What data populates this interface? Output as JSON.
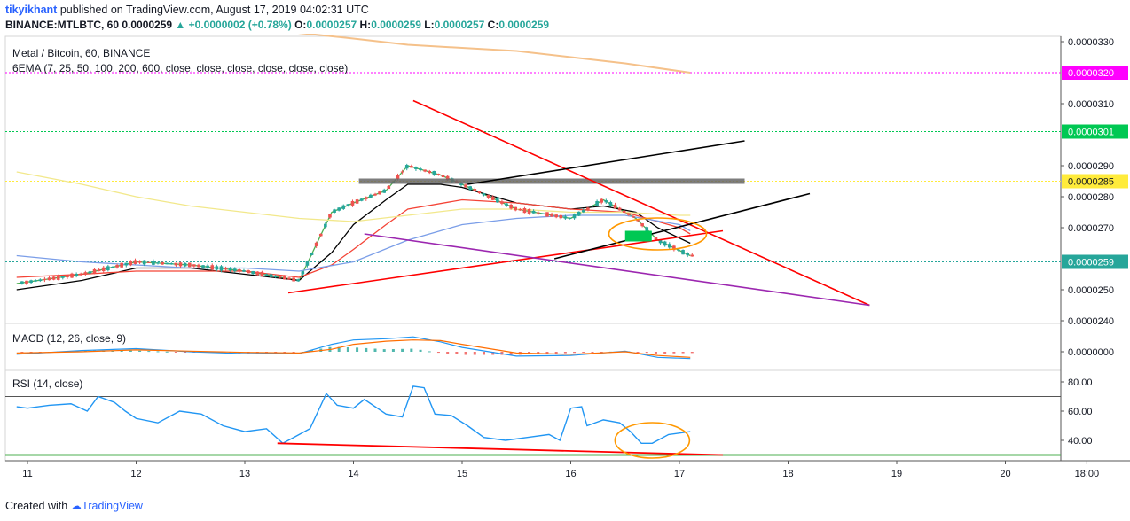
{
  "header": {
    "author": "tikyikhant",
    "published_text": "published on TradingView.com, August 17, 2019 04:02:31 UTC",
    "symbol_full": "BINANCE:MTLBTC, 60",
    "last_price": "0.0000259",
    "change": "+0.0000002 (+0.78%)",
    "ohlc": {
      "o_label": "O:",
      "o": "0.0000257",
      "h_label": "H:",
      "h": "0.0000259",
      "l_label": "L:",
      "l": "0.0000257",
      "c_label": "C:",
      "c": "0.0000259"
    }
  },
  "legend": {
    "pane_title": "Metal / Bitcoin, 60, BINANCE",
    "ema_label": "6EMA (7, 25, 50, 100, 200, 600, close, close, close, close, close, close)",
    "macd_label": "MACD (12, 26, close, 9)",
    "rsi_label": "RSI (14, close)"
  },
  "footer": {
    "created_with": "Created with",
    "brand": "TradingView"
  },
  "colors": {
    "up": "#26a69a",
    "down": "#ef5350",
    "trend_red": "#ff0000",
    "purple": "#9c27b0",
    "black_line": "#000000",
    "orange": "#ff9800",
    "magenta": "#ff00ff",
    "green": "#00c853",
    "yellow": "#ffeb3b",
    "rsi": "#2196f3"
  },
  "chart_data": [
    {
      "type": "candlestick",
      "title": "Metal / Bitcoin, 60, BINANCE",
      "ylim": [
        2.4e-05,
        3.33e-05
      ],
      "y_ticks": [
        "0.0000330",
        "0.0000310",
        "0.0000290",
        "0.0000280",
        "0.0000270",
        "0.0000250",
        "0.0000240"
      ],
      "x_ticks": [
        "11",
        "12",
        "13",
        "14",
        "15",
        "16",
        "17",
        "18",
        "19",
        "20",
        "18:00"
      ],
      "xlim": [
        10.9,
        21.25
      ],
      "price_labels": [
        {
          "value": 3.2e-05,
          "text": "0.0000320",
          "color": "#ff00ff"
        },
        {
          "value": 3.01e-05,
          "text": "0.0000301",
          "color": "#00c853"
        },
        {
          "value": 2.85e-05,
          "text": "0.0000285",
          "color": "#ffeb3b"
        },
        {
          "value": 2.59e-05,
          "text": "0.0000259",
          "color": "#26a69a"
        }
      ],
      "trendlines": [
        {
          "name": "descending-resistance",
          "color": "#ff0000",
          "points": [
            [
              14.55,
              3.11e-05
            ],
            [
              18.75,
              2.45e-05
            ]
          ]
        },
        {
          "name": "ascending-support",
          "color": "#ff0000",
          "points": [
            [
              13.4,
              2.49e-05
            ],
            [
              17.4,
              2.69e-05
            ]
          ]
        },
        {
          "name": "lower-wedge",
          "color": "#9c27b0",
          "points": [
            [
              14.1,
              2.68e-05
            ],
            [
              18.75,
              2.45e-05
            ]
          ]
        },
        {
          "name": "channel-upper",
          "color": "#000000",
          "points": [
            [
              15.05,
              2.84e-05
            ],
            [
              17.6,
              2.98e-05
            ]
          ]
        },
        {
          "name": "channel-lower",
          "color": "#000000",
          "points": [
            [
              15.85,
              2.6e-05
            ],
            [
              18.2,
              2.81e-05
            ]
          ]
        }
      ],
      "resistance_zone": {
        "from_x": 14.05,
        "to_x": 17.6,
        "y": 2.85e-05
      },
      "ema_series": [
        {
          "name": "ema-7",
          "color": "#4caf50",
          "x": [
            10.9,
            11.5,
            12,
            12.5,
            13,
            13.5,
            13.8,
            14,
            14.3,
            14.5,
            14.8,
            15,
            15.5,
            16,
            16.3,
            16.6,
            16.8,
            17.1
          ],
          "y": [
            2.52e-05,
            2.55e-05,
            2.59e-05,
            2.58e-05,
            2.56e-05,
            2.53e-05,
            2.75e-05,
            2.78e-05,
            2.82e-05,
            2.9e-05,
            2.87e-05,
            2.84e-05,
            2.76e-05,
            2.73e-05,
            2.79e-05,
            2.73e-05,
            2.66e-05,
            2.61e-05
          ]
        },
        {
          "name": "ema-25",
          "color": "#000000",
          "x": [
            10.9,
            11.5,
            12,
            12.5,
            13,
            13.5,
            13.8,
            14,
            14.3,
            14.5,
            14.8,
            15,
            15.5,
            16,
            16.3,
            16.6,
            16.8,
            17.1
          ],
          "y": [
            2.5e-05,
            2.53e-05,
            2.57e-05,
            2.57e-05,
            2.55e-05,
            2.53e-05,
            2.62e-05,
            2.71e-05,
            2.79e-05,
            2.84e-05,
            2.84e-05,
            2.83e-05,
            2.78e-05,
            2.76e-05,
            2.77e-05,
            2.75e-05,
            2.7e-05,
            2.65e-05
          ]
        },
        {
          "name": "ema-50",
          "color": "#f44336",
          "x": [
            10.9,
            11.5,
            12,
            12.5,
            13,
            13.5,
            13.8,
            14,
            14.3,
            14.5,
            15,
            15.5,
            16,
            16.5,
            17,
            17.1
          ],
          "y": [
            2.54e-05,
            2.55e-05,
            2.56e-05,
            2.56e-05,
            2.56e-05,
            2.54e-05,
            2.58e-05,
            2.63e-05,
            2.71e-05,
            2.76e-05,
            2.79e-05,
            2.78e-05,
            2.76e-05,
            2.75e-05,
            2.7e-05,
            2.68e-05
          ]
        },
        {
          "name": "ema-100",
          "color": "#7b9ee8",
          "x": [
            10.9,
            11.5,
            12,
            12.5,
            13,
            13.5,
            14,
            14.5,
            15,
            15.5,
            16,
            16.5,
            17,
            17.1
          ],
          "y": [
            2.61e-05,
            2.59e-05,
            2.58e-05,
            2.57e-05,
            2.57e-05,
            2.56e-05,
            2.59e-05,
            2.66e-05,
            2.71e-05,
            2.73e-05,
            2.74e-05,
            2.74e-05,
            2.71e-05,
            2.69e-05
          ]
        },
        {
          "name": "ema-200",
          "color": "#f2e88b",
          "x": [
            10.9,
            11.5,
            12,
            12.5,
            13,
            13.5,
            14,
            14.5,
            15,
            15.5,
            16,
            16.5,
            17,
            17.1
          ],
          "y": [
            2.88e-05,
            2.84e-05,
            2.8e-05,
            2.77e-05,
            2.75e-05,
            2.73e-05,
            2.72e-05,
            2.74e-05,
            2.76e-05,
            2.76e-05,
            2.75e-05,
            2.75e-05,
            2.74e-05,
            2.74e-05
          ]
        },
        {
          "name": "ema-600",
          "color": "#f5c18a",
          "x": [
            13.45,
            14,
            14.5,
            15,
            15.5,
            16,
            16.5,
            17.1
          ],
          "y": [
            3.33e-05,
            3.31e-05,
            3.29e-05,
            3.28e-05,
            3.27e-05,
            3.25e-05,
            3.23e-05,
            3.2e-05
          ]
        }
      ]
    },
    {
      "type": "line",
      "title": "MACD (12, 26, close, 9)",
      "y_ticks": [
        "0.0000000"
      ],
      "series": [
        {
          "name": "MACD",
          "color": "#2196f3",
          "x": [
            10.9,
            11.5,
            12,
            12.5,
            13,
            13.5,
            13.8,
            14,
            14.3,
            14.55,
            14.8,
            15,
            15.5,
            16,
            16.5,
            16.8,
            17.1
          ],
          "y": [
            -0.2,
            0.1,
            0.25,
            0.0,
            -0.15,
            -0.15,
            0.6,
            0.95,
            1.05,
            1.2,
            0.8,
            0.35,
            -0.35,
            -0.3,
            0.05,
            -0.45,
            -0.55
          ]
        },
        {
          "name": "Signal",
          "color": "#ff6d00",
          "x": [
            10.9,
            11.5,
            12,
            12.5,
            13,
            13.5,
            13.8,
            14,
            14.3,
            14.55,
            14.8,
            15,
            15.5,
            16,
            16.5,
            16.8,
            17.1
          ],
          "y": [
            -0.1,
            0.0,
            0.15,
            0.05,
            -0.05,
            -0.1,
            0.2,
            0.6,
            0.85,
            0.95,
            0.9,
            0.6,
            -0.1,
            -0.2,
            0.0,
            -0.3,
            -0.45
          ]
        }
      ]
    },
    {
      "type": "line",
      "title": "RSI (14, close)",
      "ylim": [
        27,
        87
      ],
      "y_ticks": [
        "80.00",
        "60.00",
        "40.00"
      ],
      "series": [
        {
          "name": "RSI",
          "color": "#2196f3",
          "x": [
            10.9,
            11,
            11.2,
            11.4,
            11.55,
            11.65,
            11.8,
            11.9,
            12,
            12.2,
            12.4,
            12.6,
            12.8,
            13,
            13.2,
            13.35,
            13.45,
            13.6,
            13.75,
            13.85,
            14,
            14.1,
            14.3,
            14.45,
            14.55,
            14.65,
            14.75,
            14.9,
            15.05,
            15.2,
            15.4,
            15.6,
            15.8,
            15.9,
            16,
            16.1,
            16.15,
            16.3,
            16.45,
            16.55,
            16.65,
            16.75,
            16.9,
            17.1
          ],
          "y": [
            63,
            62,
            64,
            65,
            60,
            70,
            66,
            60,
            55,
            52,
            60,
            58,
            50,
            46,
            48,
            38,
            42,
            48,
            72,
            64,
            62,
            68,
            58,
            56,
            77,
            76,
            58,
            57,
            50,
            42,
            40,
            42,
            44,
            40,
            62,
            63,
            50,
            54,
            52,
            46,
            38,
            38,
            44,
            46
          ]
        }
      ],
      "trendline": {
        "color": "#ff0000",
        "points": [
          [
            13.3,
            38
          ],
          [
            17.4,
            30
          ]
        ]
      },
      "bands": [
        70,
        30
      ]
    }
  ],
  "circles": [
    {
      "name": "price-breakdown-circle",
      "x": 16.8,
      "y": 2.68e-05
    },
    {
      "name": "rsi-divergence-circle",
      "x": 16.75,
      "y": 40
    }
  ]
}
